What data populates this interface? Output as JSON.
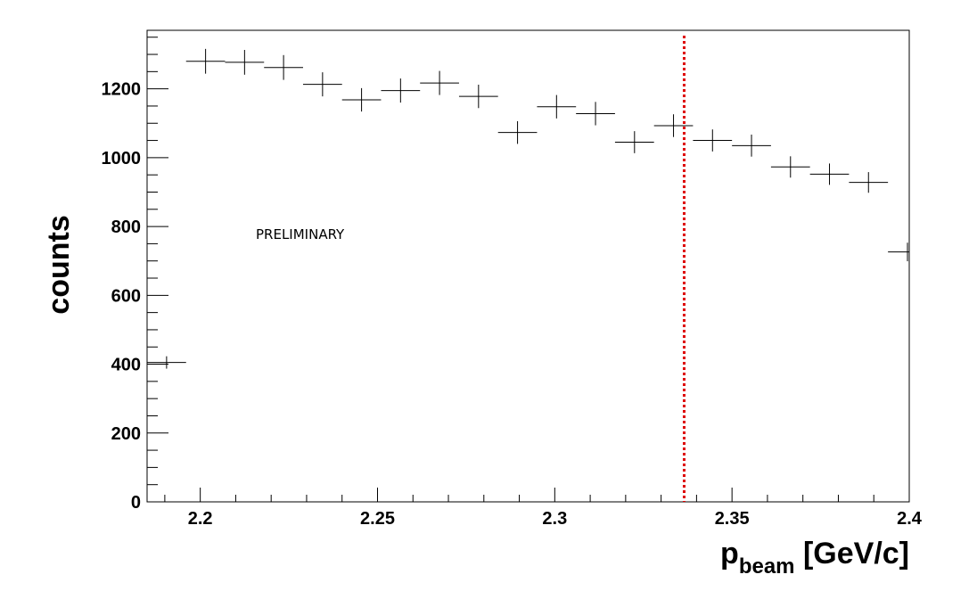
{
  "chart_data": {
    "type": "scatter",
    "xlabel": {
      "main": "p",
      "sub": "beam",
      "rest": " [GeV/c]"
    },
    "ylabel": "counts",
    "annotation": "PRELIMINARY",
    "xlim": [
      2.185,
      2.4
    ],
    "ylim": [
      0,
      1370
    ],
    "x_ticks": [
      2.2,
      2.25,
      2.3,
      2.35,
      2.4
    ],
    "x_tick_labels": [
      "2.2",
      "2.25",
      "2.3",
      "2.35",
      "2.4"
    ],
    "y_ticks": [
      0,
      200,
      400,
      600,
      800,
      1000,
      1200
    ],
    "y_tick_labels": [
      "0",
      "200",
      "400",
      "600",
      "800",
      "1000",
      "1200"
    ],
    "bin_width": 0.011,
    "points": [
      {
        "x": 2.1905,
        "y": 405,
        "err": 18
      },
      {
        "x": 2.2015,
        "y": 1280,
        "err": 36
      },
      {
        "x": 2.2125,
        "y": 1277,
        "err": 36
      },
      {
        "x": 2.2235,
        "y": 1262,
        "err": 36
      },
      {
        "x": 2.2345,
        "y": 1213,
        "err": 35
      },
      {
        "x": 2.2455,
        "y": 1168,
        "err": 34
      },
      {
        "x": 2.2565,
        "y": 1195,
        "err": 35
      },
      {
        "x": 2.2675,
        "y": 1217,
        "err": 35
      },
      {
        "x": 2.2785,
        "y": 1178,
        "err": 34
      },
      {
        "x": 2.2895,
        "y": 1073,
        "err": 33
      },
      {
        "x": 2.3005,
        "y": 1148,
        "err": 34
      },
      {
        "x": 2.3115,
        "y": 1128,
        "err": 34
      },
      {
        "x": 2.3225,
        "y": 1045,
        "err": 32
      },
      {
        "x": 2.3335,
        "y": 1093,
        "err": 33
      },
      {
        "x": 2.3445,
        "y": 1050,
        "err": 32
      },
      {
        "x": 2.3555,
        "y": 1035,
        "err": 32
      },
      {
        "x": 2.3665,
        "y": 973,
        "err": 31
      },
      {
        "x": 2.3775,
        "y": 952,
        "err": 31
      },
      {
        "x": 2.3885,
        "y": 928,
        "err": 30
      },
      {
        "x": 2.3995,
        "y": 726,
        "err": 27
      }
    ],
    "cut_line": {
      "x": 2.3365,
      "color": "#dd0000"
    },
    "grid": false,
    "legend": "none"
  }
}
